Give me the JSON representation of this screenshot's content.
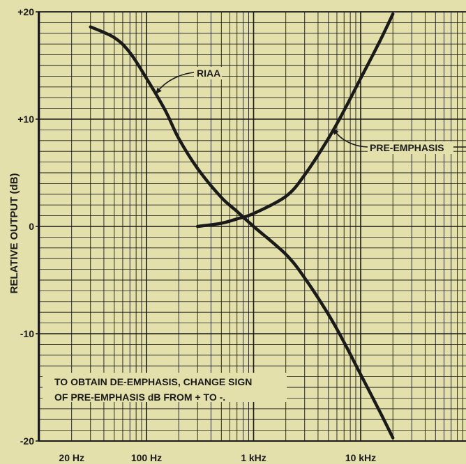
{
  "chart_data": {
    "type": "line",
    "ylabel": "RELATIVE OUTPUT (dB)",
    "xlabel": "",
    "x_scale": "log",
    "xlim": [
      10,
      50000
    ],
    "ylim": [
      -20,
      20
    ],
    "grid": true,
    "x_ticks": [
      {
        "label": "20 Hz",
        "value": 20
      },
      {
        "label": "100 Hz",
        "value": 100
      },
      {
        "label": "1 kHz",
        "value": 1000
      },
      {
        "label": "10 kHz",
        "value": 10000
      }
    ],
    "y_ticks": [
      {
        "label": "+20",
        "value": 20
      },
      {
        "label": "+10",
        "value": 10
      },
      {
        "label": "0",
        "value": 0
      },
      {
        "label": "-10",
        "value": -10
      },
      {
        "label": "-20",
        "value": -20
      }
    ],
    "series": [
      {
        "name": "RIAA",
        "x": [
          30,
          50,
          70,
          100,
          150,
          200,
          300,
          500,
          700,
          1000,
          2000,
          3000,
          5000,
          7000,
          10000,
          15000,
          20000
        ],
        "y": [
          18.6,
          17.6,
          16.2,
          13.8,
          10.8,
          8.2,
          5.4,
          2.7,
          1.4,
          0.0,
          -2.6,
          -4.8,
          -8.2,
          -10.8,
          -13.8,
          -17.2,
          -19.7
        ]
      },
      {
        "name": "PRE-EMPHASIS",
        "x": [
          300,
          500,
          700,
          1000,
          2000,
          3000,
          5000,
          7000,
          10000,
          15000,
          20000
        ],
        "y": [
          0.0,
          0.3,
          0.7,
          1.2,
          2.8,
          4.8,
          8.2,
          10.8,
          13.8,
          17.2,
          19.8
        ]
      }
    ],
    "annotations": [
      {
        "text": "RIAA",
        "series": "RIAA"
      },
      {
        "text": "PRE-EMPHASIS",
        "series": "PRE-EMPHASIS"
      }
    ],
    "note_lines": [
      "TO OBTAIN DE-EMPHASIS, CHANGE SIGN",
      "OF PRE-EMPHASIS dB FROM + TO -."
    ],
    "colors": {
      "background": "#e3e0ab",
      "ink": "#1a1a1a"
    }
  }
}
